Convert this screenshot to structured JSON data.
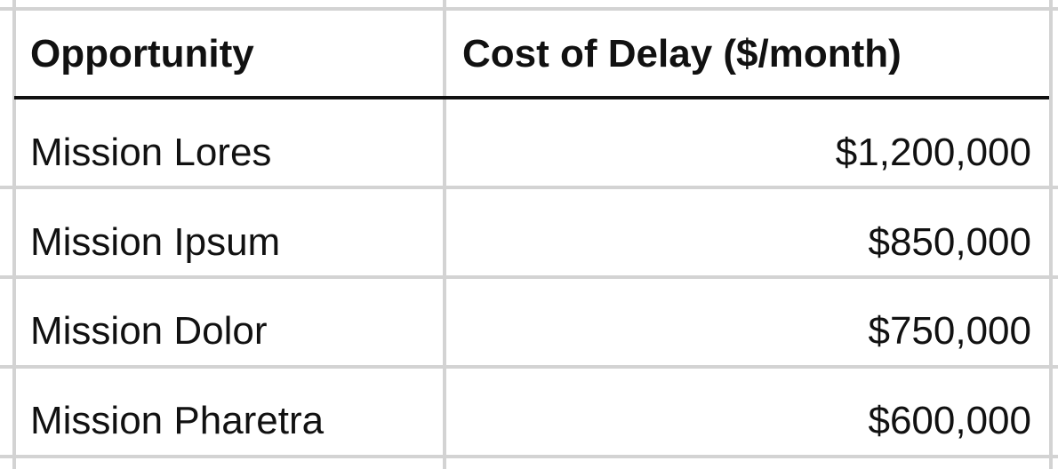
{
  "table": {
    "headers": {
      "opportunity": "Opportunity",
      "cost_of_delay": "Cost of Delay ($/month)"
    },
    "rows": [
      {
        "opportunity": "Mission Lores",
        "cost_of_delay": "$1,200,000"
      },
      {
        "opportunity": "Mission Ipsum",
        "cost_of_delay": "$850,000"
      },
      {
        "opportunity": "Mission Dolor",
        "cost_of_delay": "$750,000"
      },
      {
        "opportunity": "Mission Pharetra",
        "cost_of_delay": "$600,000"
      }
    ]
  },
  "colors": {
    "grid": "#d3d3d3",
    "header_border": "#111111",
    "text": "#111111"
  }
}
